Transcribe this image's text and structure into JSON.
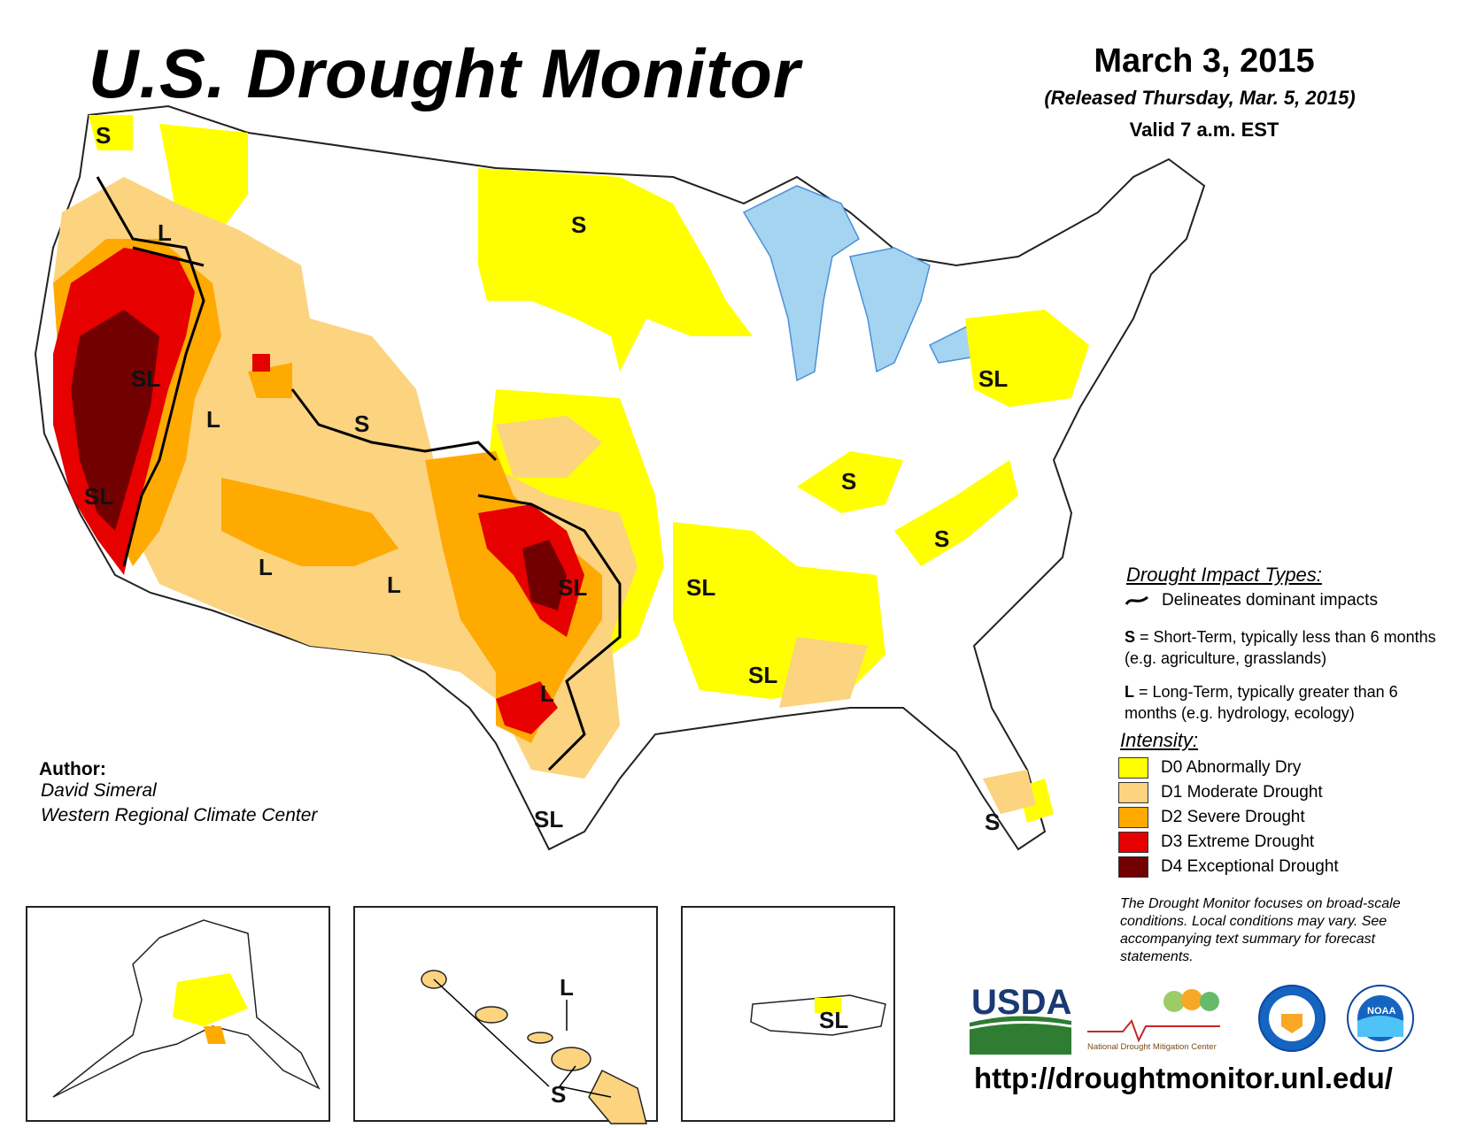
{
  "header": {
    "title": "U.S. Drought Monitor",
    "date": "March 3, 2015",
    "released": "(Released Thursday, Mar. 5, 2015)",
    "valid": "Valid 7 a.m. EST"
  },
  "map_labels": {
    "pnw_s": "S",
    "oregon_l": "L",
    "nevada_sl": "SL",
    "calif_sl": "SL",
    "utah_l": "L",
    "wyoming_s": "S",
    "dakota_s": "S",
    "arizona_l": "L",
    "nm_l": "L",
    "texas_sl": "SL",
    "texas_l": "L",
    "south_tx_sl": "SL",
    "arkansas_sl": "SL",
    "miss_sl": "SL",
    "ky_s": "S",
    "va_s": "S",
    "ny_sl": "SL",
    "fl_s": "S",
    "hawaii_l": "L",
    "hawaii_s": "S",
    "pr_sl": "SL"
  },
  "author": {
    "label": "Author:",
    "name": "David Simeral",
    "org": "Western Regional Climate Center"
  },
  "legend": {
    "impact_title": "Drought Impact Types:",
    "delineates": "Delineates dominant impacts",
    "short_key": "S",
    "short_text": " = Short-Term, typically less than 6 months (e.g. agriculture, grasslands)",
    "long_key": "L",
    "long_text": " = Long-Term, typically greater than 6 months (e.g. hydrology, ecology)",
    "intensity_title": "Intensity:",
    "levels": [
      {
        "label": "D0 Abnormally Dry",
        "color": "#ffff00"
      },
      {
        "label": "D1 Moderate Drought",
        "color": "#fcd37f"
      },
      {
        "label": "D2 Severe Drought",
        "color": "#ffaa00"
      },
      {
        "label": "D3 Extreme Drought",
        "color": "#e60000"
      },
      {
        "label": "D4 Exceptional Drought",
        "color": "#730000"
      }
    ]
  },
  "note": "The Drought Monitor focuses on broad-scale conditions. Local conditions may vary. See accompanying text summary for forecast statements.",
  "logos": {
    "usda": "USDA",
    "ndmc": "National Drought Mitigation Center",
    "noaa": "NOAA"
  },
  "url": "http://droughtmonitor.unl.edu/"
}
